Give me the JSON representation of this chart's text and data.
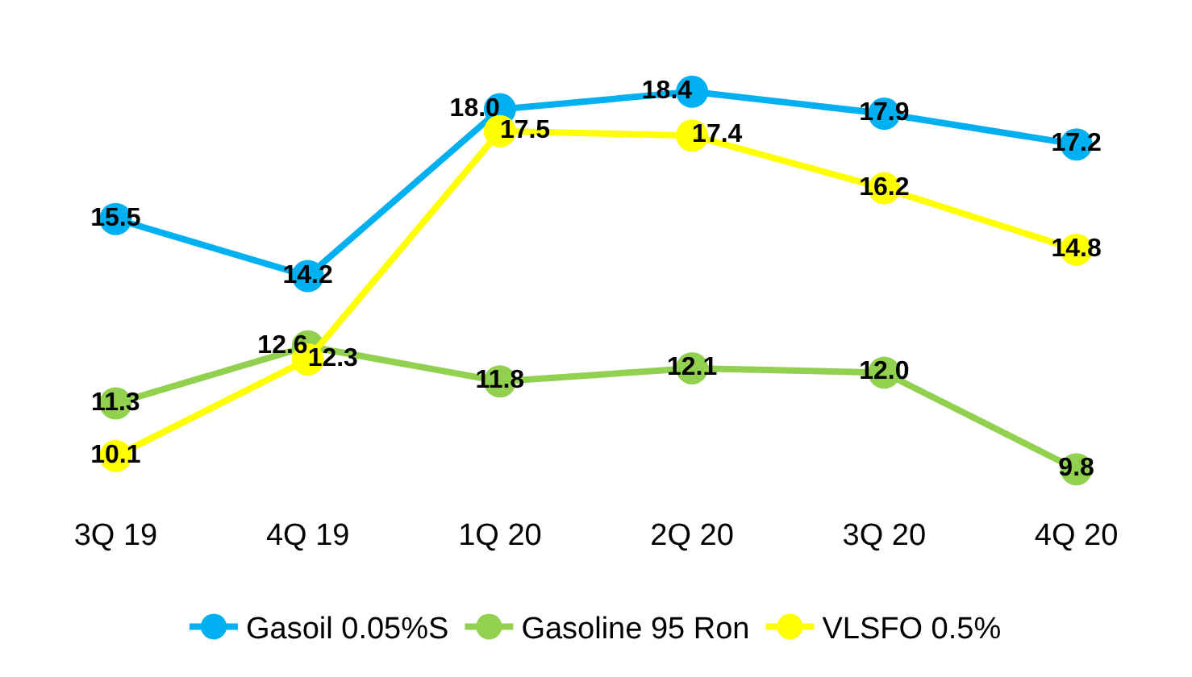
{
  "chart_data": {
    "type": "line",
    "categories": [
      "3Q 19",
      "4Q 19",
      "1Q 20",
      "2Q 20",
      "3Q 20",
      "4Q 20"
    ],
    "series": [
      {
        "name": "Gasoil 0.05%S",
        "color": "#00b0f0",
        "values": [
          15.5,
          14.2,
          18.0,
          18.4,
          17.9,
          17.2
        ],
        "value_labels": [
          "15.5",
          "14.2",
          "18.0",
          "18.4",
          "17.9",
          "17.2"
        ]
      },
      {
        "name": "Gasoline 95 Ron",
        "color": "#92d050",
        "values": [
          11.3,
          12.6,
          11.8,
          12.1,
          12.0,
          9.8
        ],
        "value_labels": [
          "11.3",
          "12.6",
          "11.8",
          "12.1",
          "12.0",
          "9.8"
        ]
      },
      {
        "name": "VLSFO 0.5%",
        "color": "#ffff00",
        "values": [
          10.1,
          12.3,
          17.5,
          17.4,
          16.2,
          14.8
        ],
        "value_labels": [
          "10.1",
          "12.3",
          "17.5",
          "17.4",
          "16.2",
          "14.8"
        ]
      }
    ],
    "marker": "circle",
    "line_style": "solid",
    "legend": "bottom"
  }
}
